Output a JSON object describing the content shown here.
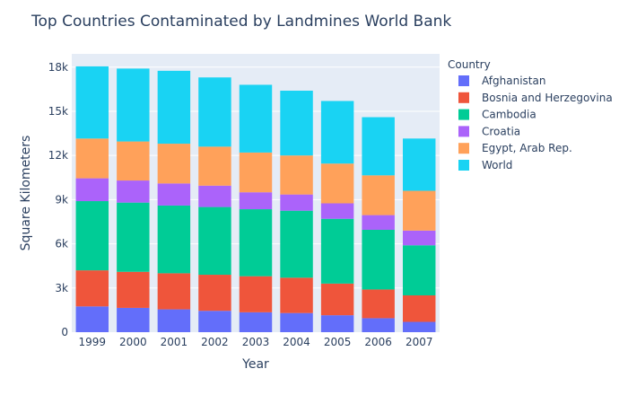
{
  "chart_data": {
    "type": "bar",
    "barmode": "stack",
    "title": "Top Countries Contaminated by Landmines World Bank",
    "xlabel": "Year",
    "ylabel": "Square Kilometers",
    "categories": [
      "1999",
      "2000",
      "2001",
      "2002",
      "2003",
      "2004",
      "2005",
      "2006",
      "2007"
    ],
    "ylim": [
      0,
      18900
    ],
    "yticks": [
      0,
      3000,
      6000,
      9000,
      12000,
      15000,
      18000
    ],
    "ytick_labels": [
      "0",
      "3k",
      "6k",
      "9k",
      "12k",
      "15k",
      "18k"
    ],
    "grid": true,
    "legend_title": "Country",
    "legend_position": "right",
    "series": [
      {
        "name": "Afghanistan",
        "color": "#636efa",
        "values": [
          1750,
          1650,
          1550,
          1450,
          1350,
          1300,
          1150,
          950,
          700
        ]
      },
      {
        "name": "Bosnia and Herzegovina",
        "color": "#ef553b",
        "values": [
          2450,
          2450,
          2450,
          2450,
          2450,
          2400,
          2150,
          1950,
          1800
        ]
      },
      {
        "name": "Cambodia",
        "color": "#00cc96",
        "values": [
          4700,
          4700,
          4600,
          4600,
          4550,
          4550,
          4400,
          4050,
          3400
        ]
      },
      {
        "name": "Croatia",
        "color": "#ab63fa",
        "values": [
          1550,
          1500,
          1500,
          1450,
          1150,
          1100,
          1050,
          1000,
          1000
        ]
      },
      {
        "name": "Egypt, Arab Rep.",
        "color": "#ffa15a",
        "values": [
          2700,
          2650,
          2700,
          2650,
          2700,
          2650,
          2700,
          2700,
          2700
        ]
      },
      {
        "name": "World",
        "color": "#19d3f3",
        "values": [
          4900,
          4950,
          4950,
          4700,
          4600,
          4400,
          4250,
          3950,
          3550
        ]
      }
    ]
  },
  "colors": {
    "plot_background": "#e5ecf6",
    "grid": "#ffffff",
    "text": "#2a3f5f"
  }
}
